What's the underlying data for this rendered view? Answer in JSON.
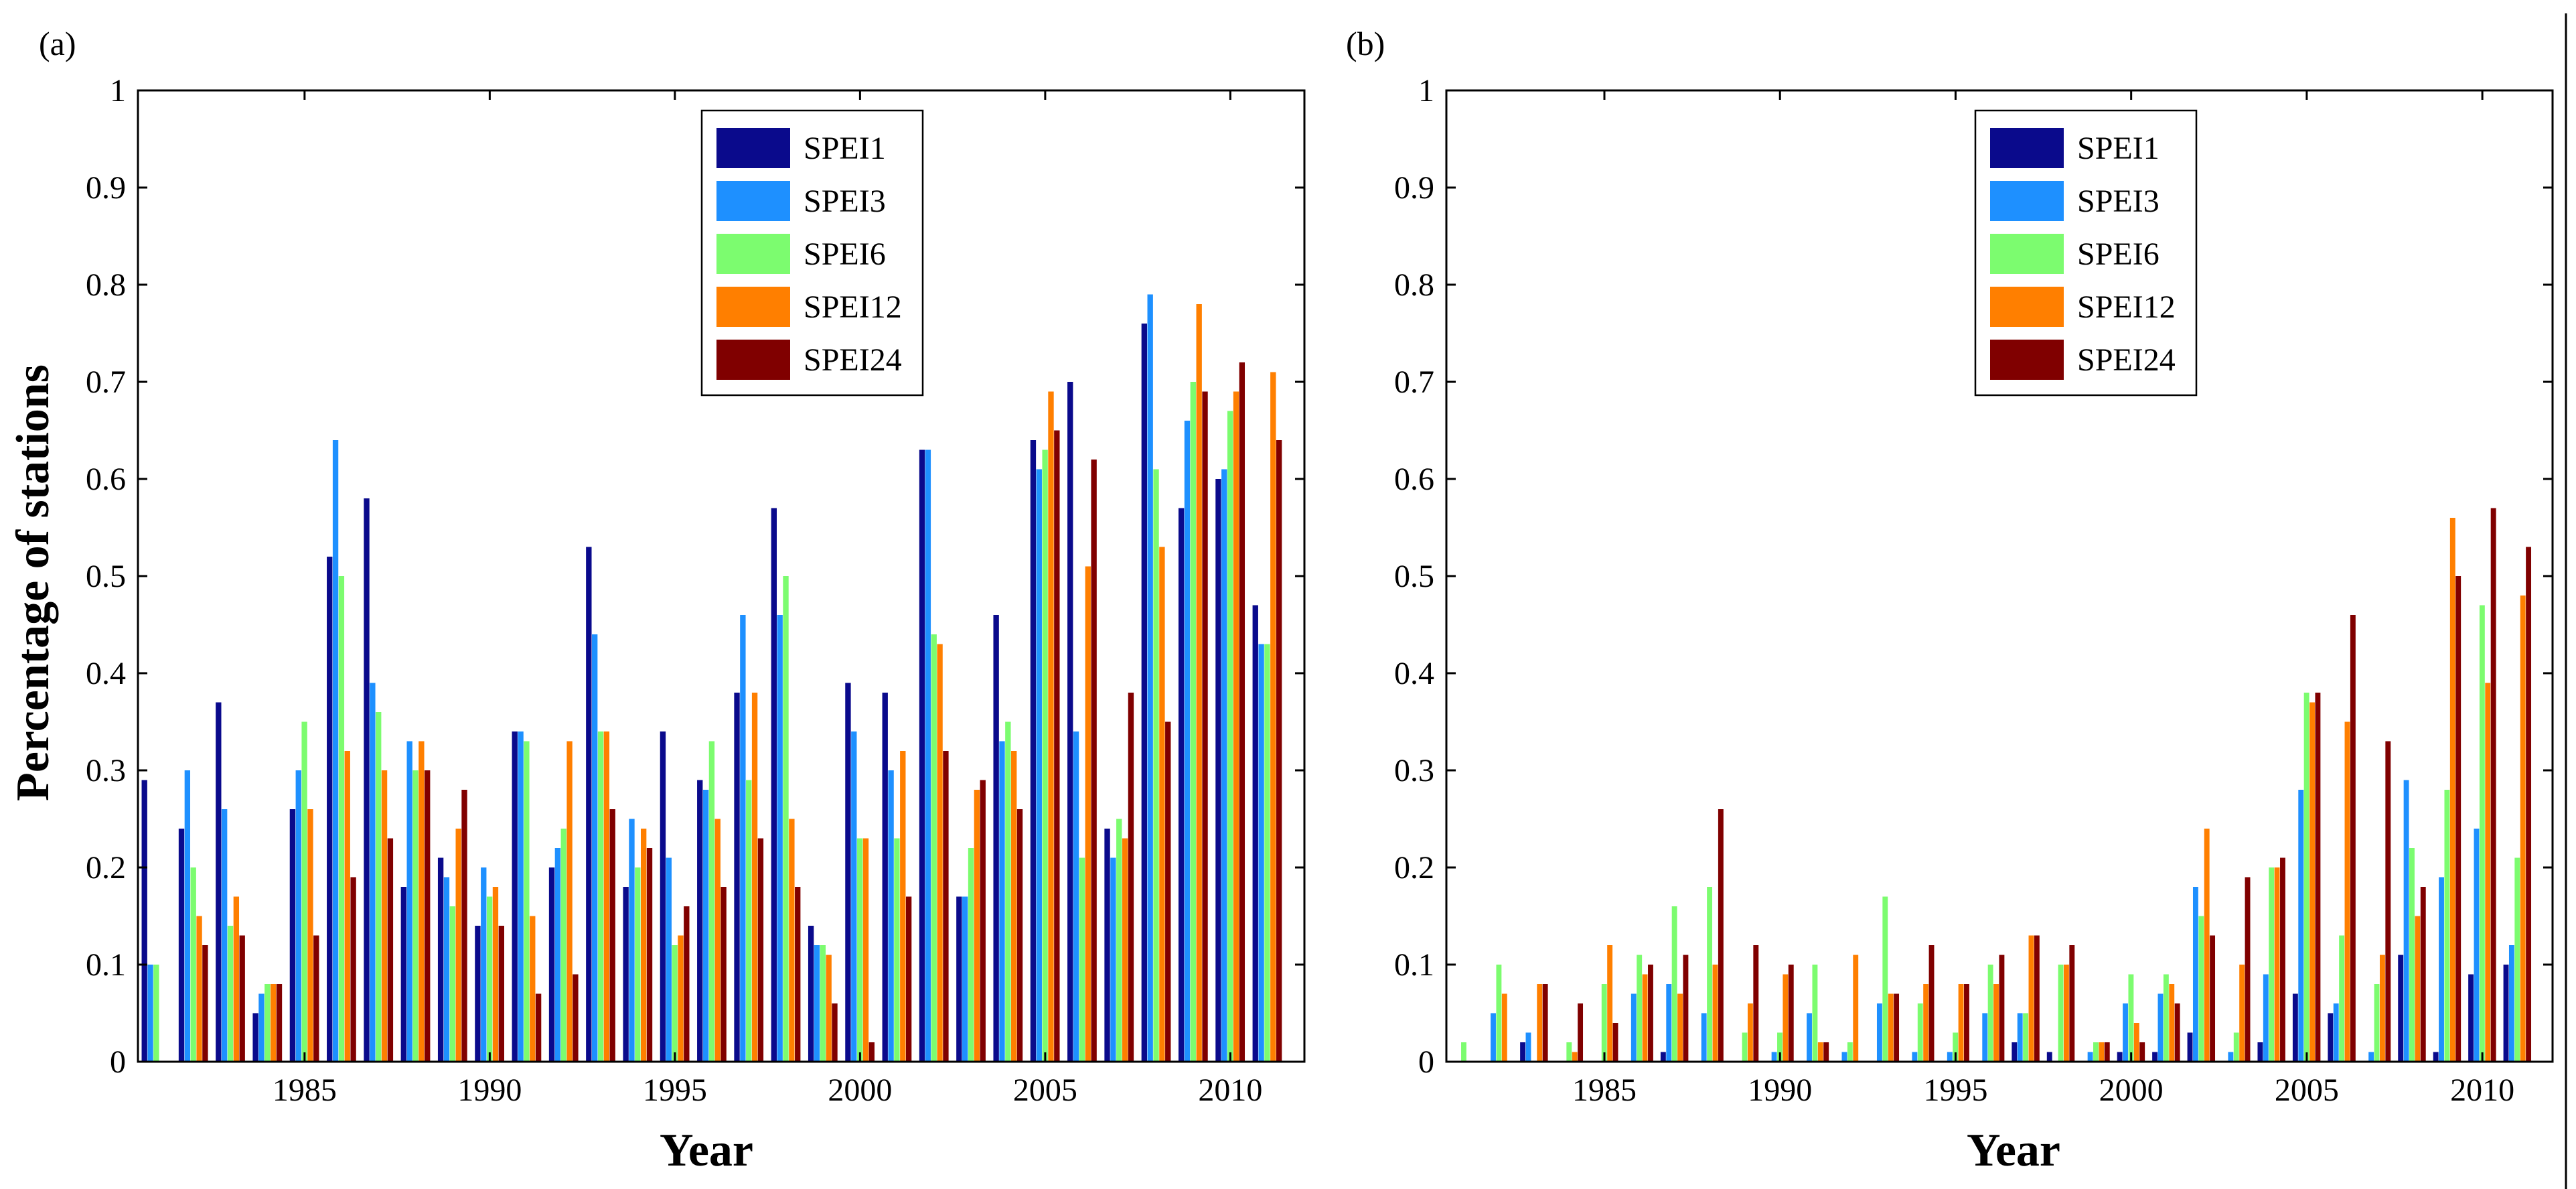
{
  "chart_data": [
    {
      "panel_label": "(a)",
      "type": "bar",
      "ylabel": "Percentage of stations",
      "xlabel": "Year",
      "ylim": [
        0,
        1
      ],
      "xlim": [
        1980.5,
        2012
      ],
      "yticks": [
        "0",
        "0.1",
        "0.2",
        "0.3",
        "0.4",
        "0.5",
        "0.6",
        "0.7",
        "0.8",
        "0.9",
        "1"
      ],
      "xticks": [
        "1985",
        "1990",
        "1995",
        "2000",
        "2005",
        "2010"
      ],
      "legend_position": "top-center",
      "categories": [
        1981,
        1982,
        1983,
        1984,
        1985,
        1986,
        1987,
        1988,
        1989,
        1990,
        1991,
        1992,
        1993,
        1994,
        1995,
        1996,
        1997,
        1998,
        1999,
        2000,
        2001,
        2002,
        2003,
        2004,
        2005,
        2006,
        2007,
        2008,
        2009,
        2010,
        2011
      ],
      "series": [
        {
          "name": "SPEI1",
          "color": "#0a0a8c",
          "values": [
            0.29,
            0.24,
            0.37,
            0.05,
            0.26,
            0.52,
            0.58,
            0.18,
            0.21,
            0.14,
            0.34,
            0.2,
            0.53,
            0.18,
            0.34,
            0.29,
            0.38,
            0.57,
            0.14,
            0.39,
            0.38,
            0.63,
            0.17,
            0.46,
            0.64,
            0.7,
            0.24,
            0.76,
            0.57,
            0.6,
            0.47
          ]
        },
        {
          "name": "SPEI3",
          "color": "#1e90ff",
          "values": [
            0.1,
            0.3,
            0.26,
            0.07,
            0.3,
            0.64,
            0.39,
            0.33,
            0.19,
            0.2,
            0.34,
            0.22,
            0.44,
            0.25,
            0.21,
            0.28,
            0.46,
            0.46,
            0.12,
            0.34,
            0.3,
            0.63,
            0.17,
            0.33,
            0.61,
            0.34,
            0.21,
            0.79,
            0.66,
            0.61,
            0.43
          ]
        },
        {
          "name": "SPEI6",
          "color": "#7cfc6f",
          "values": [
            0.1,
            0.2,
            0.14,
            0.08,
            0.35,
            0.5,
            0.36,
            0.3,
            0.16,
            0.17,
            0.33,
            0.24,
            0.34,
            0.2,
            0.12,
            0.33,
            0.29,
            0.5,
            0.12,
            0.23,
            0.23,
            0.44,
            0.22,
            0.35,
            0.63,
            0.21,
            0.25,
            0.61,
            0.7,
            0.67,
            0.43
          ]
        },
        {
          "name": "SPEI12",
          "color": "#ff7f00",
          "values": [
            0.0,
            0.15,
            0.17,
            0.08,
            0.26,
            0.32,
            0.3,
            0.33,
            0.24,
            0.18,
            0.15,
            0.33,
            0.34,
            0.24,
            0.13,
            0.25,
            0.38,
            0.25,
            0.11,
            0.23,
            0.32,
            0.43,
            0.28,
            0.32,
            0.69,
            0.51,
            0.23,
            0.53,
            0.78,
            0.69,
            0.71
          ]
        },
        {
          "name": "SPEI24",
          "color": "#800000",
          "values": [
            0.0,
            0.12,
            0.13,
            0.08,
            0.13,
            0.19,
            0.23,
            0.3,
            0.28,
            0.14,
            0.07,
            0.09,
            0.26,
            0.22,
            0.16,
            0.18,
            0.23,
            0.18,
            0.06,
            0.02,
            0.17,
            0.32,
            0.29,
            0.26,
            0.65,
            0.62,
            0.38,
            0.35,
            0.69,
            0.72,
            0.64
          ]
        }
      ]
    },
    {
      "panel_label": "(b)",
      "type": "bar",
      "ylabel": "",
      "xlabel": "Year",
      "ylim": [
        0,
        1
      ],
      "xlim": [
        1980.5,
        2012
      ],
      "yticks": [
        "0",
        "0.1",
        "0.2",
        "0.3",
        "0.4",
        "0.5",
        "0.6",
        "0.7",
        "0.8",
        "0.9",
        "1"
      ],
      "xticks": [
        "1985",
        "1990",
        "1995",
        "2000",
        "2005",
        "2010"
      ],
      "legend_position": "top-center",
      "categories": [
        1981,
        1982,
        1983,
        1984,
        1985,
        1986,
        1987,
        1988,
        1989,
        1990,
        1991,
        1992,
        1993,
        1994,
        1995,
        1996,
        1997,
        1998,
        1999,
        2000,
        2001,
        2002,
        2003,
        2004,
        2005,
        2006,
        2007,
        2008,
        2009,
        2010,
        2011
      ],
      "series": [
        {
          "name": "SPEI1",
          "color": "#0a0a8c",
          "values": [
            0.0,
            0.0,
            0.02,
            0.0,
            0.0,
            0.0,
            0.01,
            0.0,
            0.0,
            0.0,
            0.0,
            0.0,
            0.0,
            0.0,
            0.0,
            0.0,
            0.02,
            0.01,
            0.0,
            0.01,
            0.01,
            0.03,
            0.0,
            0.02,
            0.07,
            0.05,
            0.0,
            0.11,
            0.01,
            0.09,
            0.1
          ]
        },
        {
          "name": "SPEI3",
          "color": "#1e90ff",
          "values": [
            0.0,
            0.05,
            0.03,
            0.0,
            0.0,
            0.07,
            0.08,
            0.05,
            0.0,
            0.01,
            0.05,
            0.01,
            0.06,
            0.01,
            0.01,
            0.05,
            0.05,
            0.0,
            0.01,
            0.06,
            0.07,
            0.18,
            0.01,
            0.09,
            0.28,
            0.06,
            0.01,
            0.29,
            0.19,
            0.24,
            0.12
          ]
        },
        {
          "name": "SPEI6",
          "color": "#7cfc6f",
          "values": [
            0.02,
            0.1,
            0.0,
            0.02,
            0.08,
            0.11,
            0.16,
            0.18,
            0.03,
            0.03,
            0.1,
            0.02,
            0.17,
            0.06,
            0.03,
            0.1,
            0.05,
            0.1,
            0.02,
            0.09,
            0.09,
            0.15,
            0.03,
            0.2,
            0.38,
            0.13,
            0.08,
            0.22,
            0.28,
            0.47,
            0.21
          ]
        },
        {
          "name": "SPEI12",
          "color": "#ff7f00",
          "values": [
            0.0,
            0.07,
            0.08,
            0.01,
            0.12,
            0.09,
            0.07,
            0.1,
            0.06,
            0.09,
            0.02,
            0.11,
            0.07,
            0.08,
            0.08,
            0.08,
            0.13,
            0.1,
            0.02,
            0.04,
            0.08,
            0.24,
            0.1,
            0.2,
            0.37,
            0.35,
            0.11,
            0.15,
            0.56,
            0.39,
            0.48
          ]
        },
        {
          "name": "SPEI24",
          "color": "#800000",
          "values": [
            0.0,
            0.0,
            0.08,
            0.06,
            0.04,
            0.1,
            0.11,
            0.26,
            0.12,
            0.1,
            0.02,
            0.0,
            0.07,
            0.12,
            0.08,
            0.11,
            0.13,
            0.12,
            0.02,
            0.02,
            0.06,
            0.13,
            0.19,
            0.21,
            0.38,
            0.46,
            0.33,
            0.18,
            0.5,
            0.57,
            0.53
          ]
        }
      ]
    }
  ]
}
